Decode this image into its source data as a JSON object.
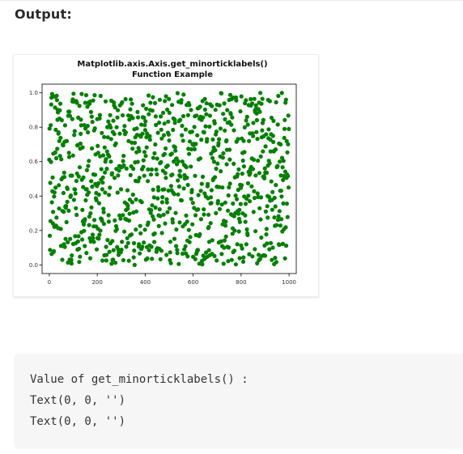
{
  "page": {
    "heading": "Output:"
  },
  "code_output": {
    "lines": [
      "Value of get_minorticklabels() :",
      "Text(0, 0, '')",
      "Text(0, 0, '')"
    ]
  },
  "chart_data": {
    "type": "scatter",
    "title_lines": [
      "Matplotlib.axis.Axis.get_minorticklabels()",
      "Function Example"
    ],
    "xlabel": "",
    "ylabel": "",
    "xlim": [
      -30,
      1030
    ],
    "ylim": [
      -0.05,
      1.05
    ],
    "x_ticks": [
      0,
      200,
      400,
      600,
      800,
      1000
    ],
    "x_tick_labels": [
      "0",
      "200",
      "400",
      "600",
      "800",
      "1000"
    ],
    "y_ticks": [
      0.0,
      0.2,
      0.4,
      0.6,
      0.8,
      1.0
    ],
    "y_tick_labels": [
      "0.0",
      "0.2",
      "0.4",
      "0.6",
      "0.8",
      "1.0"
    ],
    "grid": false,
    "legend": "none",
    "marker_color": "#008000",
    "series": [
      {
        "points_count": 1000,
        "x": "0..999 (index)",
        "y": "uniform random in [0, 1]"
      }
    ]
  }
}
